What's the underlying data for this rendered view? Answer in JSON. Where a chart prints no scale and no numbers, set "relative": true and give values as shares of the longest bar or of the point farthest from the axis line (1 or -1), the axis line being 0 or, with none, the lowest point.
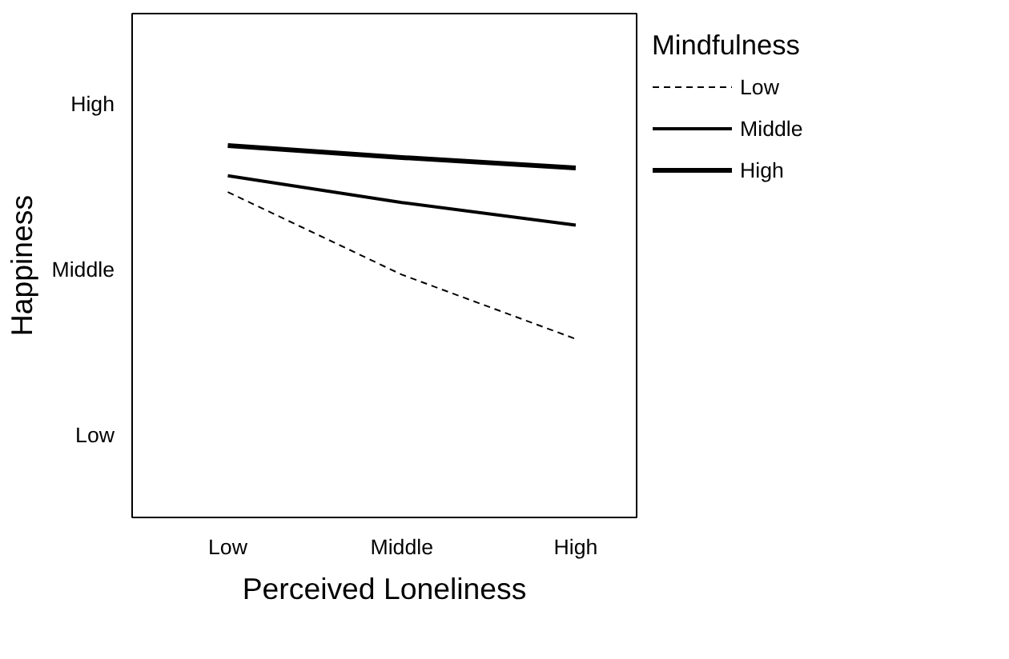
{
  "chart_data": {
    "type": "line",
    "xlabel": "Perceived Loneliness",
    "ylabel": "Happiness",
    "legend_title": "Mindfulness",
    "legend": "right",
    "relative": true,
    "categories": [
      "Low",
      "Middle",
      "High"
    ],
    "annotations": [
      "Low",
      "Middle",
      "High"
    ],
    "series": [
      {
        "name": "Low",
        "color": "#000000",
        "line_style": "dashed",
        "values": [
          0.875,
          0.653,
          0.48
        ]
      },
      {
        "name": "Middle",
        "color": "#000000",
        "line_style": "solid",
        "values": [
          0.919,
          0.847,
          0.786
        ]
      },
      {
        "name": "High",
        "color": "#000000",
        "line_style": "solid",
        "values": [
          1,
          0.968,
          0.94
        ]
      }
    ]
  }
}
